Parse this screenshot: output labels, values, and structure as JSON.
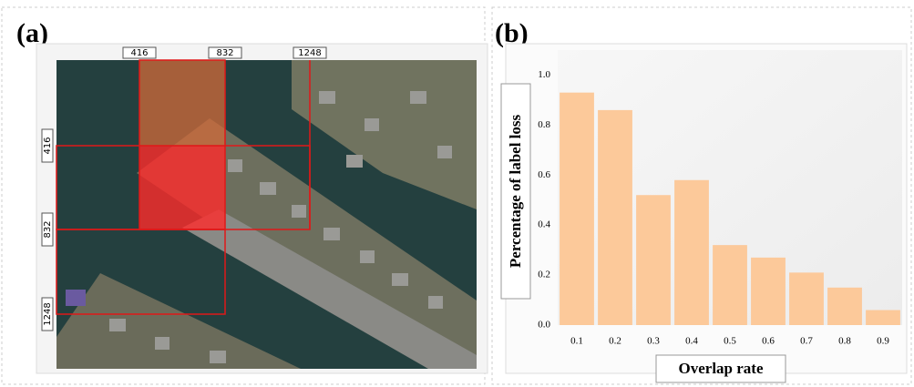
{
  "panel_a": {
    "label": "(a)",
    "top_labels": [
      "416",
      "832",
      "1248"
    ],
    "left_labels": [
      "416",
      "832",
      "1248"
    ]
  },
  "panel_b": {
    "label": "(b)"
  },
  "chart_data": {
    "type": "bar",
    "xlabel": "Overlap rate",
    "ylabel": "Percentage of label loss",
    "categories": [
      "0.1",
      "0.2",
      "0.3",
      "0.4",
      "0.5",
      "0.6",
      "0.7",
      "0.8",
      "0.9"
    ],
    "values": [
      0.93,
      0.86,
      0.52,
      0.58,
      0.32,
      0.27,
      0.21,
      0.15,
      0.06
    ],
    "color": "#fcc99a",
    "ylim": [
      0,
      1.1
    ],
    "yticks": [
      {
        "value": 0,
        "label": "0.0"
      },
      0.2,
      0.4,
      0.6,
      0.8,
      {
        "value": 1,
        "label": "1.0"
      }
    ],
    "grid": false
  }
}
